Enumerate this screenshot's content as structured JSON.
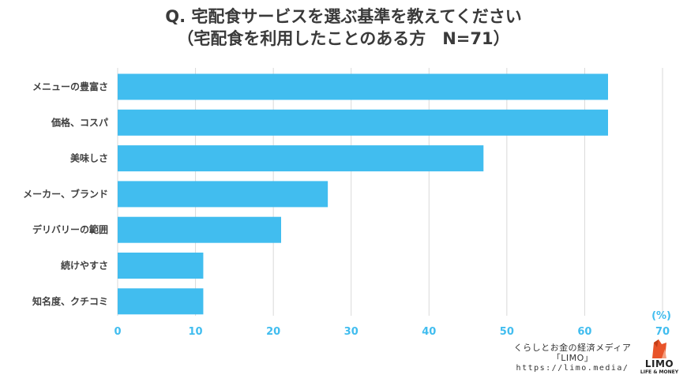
{
  "header": {
    "title_line1": "Q. 宅配食サービスを選ぶ基準を教えてください",
    "title_line2": "（宅配食を利用したことのある方　N=71）"
  },
  "chart_data": {
    "type": "bar",
    "orientation": "horizontal",
    "categories": [
      "メニューの豊富さ",
      "価格、コスパ",
      "美味しさ",
      "メーカー、ブランド",
      "デリバリーの範囲",
      "続けやすさ",
      "知名度、クチコミ"
    ],
    "values": [
      63,
      63,
      47,
      27,
      21,
      11,
      11
    ],
    "xlim": [
      0,
      70
    ],
    "xticks": [
      0,
      10,
      20,
      30,
      40,
      50,
      60,
      70
    ],
    "unit_label": "(%)",
    "grid": true,
    "colors": {
      "bar": "#41bdef",
      "tick": "#41bdef",
      "grid": "#d9d9d9"
    }
  },
  "footer": {
    "line1": "くらしとお金の経済メディア",
    "line2": "「LIMO」",
    "url": "https://limo.media/",
    "logo_text": "LIMO",
    "logo_sub": "LIFE & MONEY",
    "logo_icon": "fox-icon"
  }
}
